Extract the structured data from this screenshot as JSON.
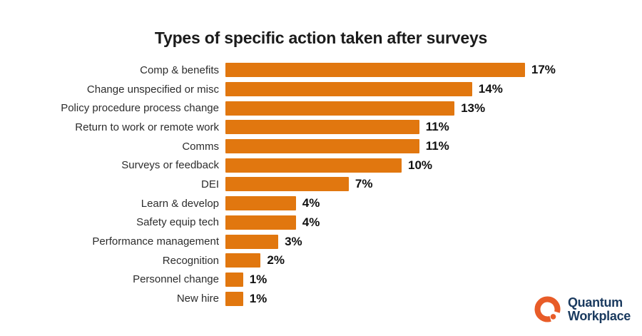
{
  "title": "Types of specific action taken after surveys",
  "chart_data": {
    "type": "bar",
    "orientation": "horizontal",
    "title": "Types of specific action taken after surveys",
    "categories": [
      "Comp & benefits",
      "Change unspecified or misc",
      "Policy procedure process change",
      "Return to work or remote work",
      "Comms",
      "Surveys or feedback",
      "DEI",
      "Learn & develop",
      "Safety equip tech",
      "Performance management",
      "Recognition",
      "Personnel change",
      "New hire"
    ],
    "values": [
      17,
      14,
      13,
      11,
      11,
      10,
      7,
      4,
      4,
      3,
      2,
      1,
      1
    ],
    "value_suffix": "%",
    "xlabel": "",
    "ylabel": "",
    "xlim": [
      0,
      18
    ],
    "grid": false,
    "legend": false,
    "bar_color": "#E1770F",
    "value_label_color": "#111111",
    "category_label_color": "#2D2D2D",
    "title_color": "#1B1B1B"
  },
  "logo": {
    "line1": "Quantum",
    "line2": "Workplace",
    "mark_color": "#E85C28",
    "text_color": "#1A3A5F"
  }
}
